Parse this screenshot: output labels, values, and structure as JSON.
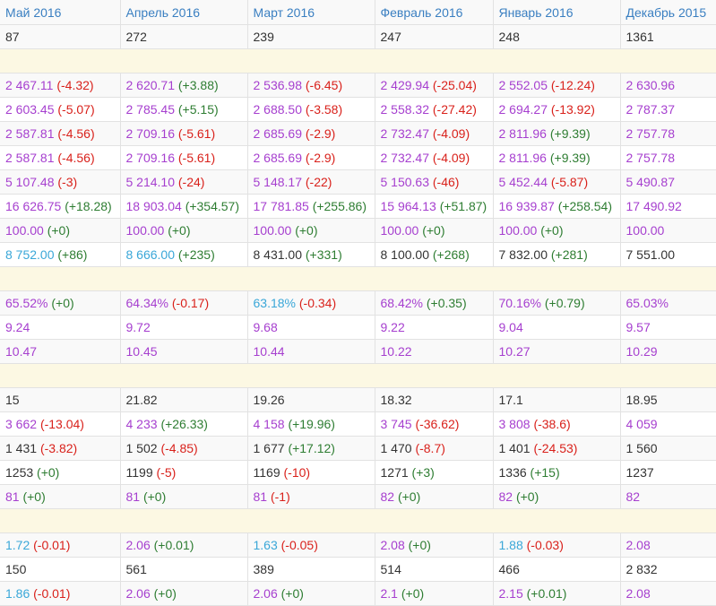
{
  "columns": [
    "Май 2016",
    "Апрель 2016",
    "Март 2016",
    "Февраль 2016",
    "Январь 2016",
    "Декабрь 2015"
  ],
  "colors": {
    "dark": "#333333",
    "violet": "#a63fcf",
    "blue": "#3aa7d8",
    "negative": "#d9211b",
    "positive": "#2e7d32",
    "header": "#3a7fc1",
    "spacer": "#fcf8e3"
  },
  "rows": [
    {
      "type": "data",
      "cells": [
        {
          "v": "87",
          "c": "dark"
        },
        {
          "v": "272",
          "c": "dark"
        },
        {
          "v": "239",
          "c": "dark"
        },
        {
          "v": "247",
          "c": "dark"
        },
        {
          "v": "248",
          "c": "dark"
        },
        {
          "v": "1361",
          "c": "dark"
        }
      ]
    },
    {
      "type": "spacer"
    },
    {
      "type": "data",
      "cells": [
        {
          "v": "2 467.11",
          "c": "violet",
          "d": "(-4.32)"
        },
        {
          "v": "2 620.71",
          "c": "violet",
          "d": "(+3.88)"
        },
        {
          "v": "2 536.98",
          "c": "violet",
          "d": "(-6.45)"
        },
        {
          "v": "2 429.94",
          "c": "violet",
          "d": "(-25.04)"
        },
        {
          "v": "2 552.05",
          "c": "violet",
          "d": "(-12.24)"
        },
        {
          "v": "2 630.96",
          "c": "violet"
        }
      ]
    },
    {
      "type": "data",
      "cells": [
        {
          "v": "2 603.45",
          "c": "violet",
          "d": "(-5.07)"
        },
        {
          "v": "2 785.45",
          "c": "violet",
          "d": "(+5.15)"
        },
        {
          "v": "2 688.50",
          "c": "violet",
          "d": "(-3.58)"
        },
        {
          "v": "2 558.32",
          "c": "violet",
          "d": "(-27.42)"
        },
        {
          "v": "2 694.27",
          "c": "violet",
          "d": "(-13.92)"
        },
        {
          "v": "2 787.37",
          "c": "violet"
        }
      ]
    },
    {
      "type": "data",
      "cells": [
        {
          "v": "2 587.81",
          "c": "violet",
          "d": "(-4.56)"
        },
        {
          "v": "2 709.16",
          "c": "violet",
          "d": "(-5.61)"
        },
        {
          "v": "2 685.69",
          "c": "violet",
          "d": "(-2.9)"
        },
        {
          "v": "2 732.47",
          "c": "violet",
          "d": "(-4.09)"
        },
        {
          "v": "2 811.96",
          "c": "violet",
          "d": "(+9.39)"
        },
        {
          "v": "2 757.78",
          "c": "violet"
        }
      ]
    },
    {
      "type": "data",
      "cells": [
        {
          "v": "2 587.81",
          "c": "violet",
          "d": "(-4.56)"
        },
        {
          "v": "2 709.16",
          "c": "violet",
          "d": "(-5.61)"
        },
        {
          "v": "2 685.69",
          "c": "violet",
          "d": "(-2.9)"
        },
        {
          "v": "2 732.47",
          "c": "violet",
          "d": "(-4.09)"
        },
        {
          "v": "2 811.96",
          "c": "violet",
          "d": "(+9.39)"
        },
        {
          "v": "2 757.78",
          "c": "violet"
        }
      ]
    },
    {
      "type": "data",
      "cells": [
        {
          "v": "5 107.48",
          "c": "violet",
          "d": "(-3)"
        },
        {
          "v": "5 214.10",
          "c": "violet",
          "d": "(-24)"
        },
        {
          "v": "5 148.17",
          "c": "violet",
          "d": "(-22)"
        },
        {
          "v": "5 150.63",
          "c": "violet",
          "d": "(-46)"
        },
        {
          "v": "5 452.44",
          "c": "violet",
          "d": "(-5.87)"
        },
        {
          "v": "5 490.87",
          "c": "violet"
        }
      ]
    },
    {
      "type": "data",
      "cells": [
        {
          "v": "16 626.75",
          "c": "violet",
          "d": "(+18.28)"
        },
        {
          "v": "18 903.04",
          "c": "violet",
          "d": "(+354.57)"
        },
        {
          "v": "17 781.85",
          "c": "violet",
          "d": "(+255.86)"
        },
        {
          "v": "15 964.13",
          "c": "violet",
          "d": "(+51.87)"
        },
        {
          "v": "16 939.87",
          "c": "violet",
          "d": "(+258.54)"
        },
        {
          "v": "17 490.92",
          "c": "violet"
        }
      ]
    },
    {
      "type": "data",
      "cells": [
        {
          "v": "100.00",
          "c": "violet",
          "d": "(+0)"
        },
        {
          "v": "100.00",
          "c": "violet",
          "d": "(+0)"
        },
        {
          "v": "100.00",
          "c": "violet",
          "d": "(+0)"
        },
        {
          "v": "100.00",
          "c": "violet",
          "d": "(+0)"
        },
        {
          "v": "100.00",
          "c": "violet",
          "d": "(+0)"
        },
        {
          "v": "100.00",
          "c": "violet"
        }
      ]
    },
    {
      "type": "data",
      "cells": [
        {
          "v": "8 752.00",
          "c": "blue",
          "d": "(+86)"
        },
        {
          "v": "8 666.00",
          "c": "blue",
          "d": "(+235)"
        },
        {
          "v": "8 431.00",
          "c": "positive",
          "d": "(+331)"
        },
        {
          "v": "8 100.00",
          "c": "positive",
          "d": "(+268)"
        },
        {
          "v": "7 832.00",
          "c": "positive",
          "d": "(+281)"
        },
        {
          "v": "7 551.00",
          "c": "positive"
        }
      ]
    },
    {
      "type": "spacer"
    },
    {
      "type": "data",
      "cells": [
        {
          "v": "65.52%",
          "c": "violet",
          "d": "(+0)"
        },
        {
          "v": "64.34%",
          "c": "violet",
          "d": "(-0.17)"
        },
        {
          "v": "63.18%",
          "c": "blue",
          "d": "(-0.34)"
        },
        {
          "v": "68.42%",
          "c": "violet",
          "d": "(+0.35)"
        },
        {
          "v": "70.16%",
          "c": "violet",
          "d": "(+0.79)"
        },
        {
          "v": "65.03%",
          "c": "violet"
        }
      ]
    },
    {
      "type": "data",
      "cells": [
        {
          "v": "9.24",
          "c": "violet"
        },
        {
          "v": "9.72",
          "c": "violet"
        },
        {
          "v": "9.68",
          "c": "violet"
        },
        {
          "v": "9.22",
          "c": "violet"
        },
        {
          "v": "9.04",
          "c": "violet"
        },
        {
          "v": "9.57",
          "c": "violet"
        }
      ]
    },
    {
      "type": "data",
      "cells": [
        {
          "v": "10.47",
          "c": "violet"
        },
        {
          "v": "10.45",
          "c": "violet"
        },
        {
          "v": "10.44",
          "c": "violet"
        },
        {
          "v": "10.22",
          "c": "violet"
        },
        {
          "v": "10.27",
          "c": "violet"
        },
        {
          "v": "10.29",
          "c": "violet"
        }
      ]
    },
    {
      "type": "spacer"
    },
    {
      "type": "data",
      "cells": [
        {
          "v": "15",
          "c": "dark"
        },
        {
          "v": "21.82",
          "c": "dark"
        },
        {
          "v": "19.26",
          "c": "dark"
        },
        {
          "v": "18.32",
          "c": "dark"
        },
        {
          "v": "17.1",
          "c": "dark"
        },
        {
          "v": "18.95",
          "c": "dark"
        }
      ]
    },
    {
      "type": "data",
      "cells": [
        {
          "v": "3 662",
          "c": "violet",
          "d": "(-13.04)"
        },
        {
          "v": "4 233",
          "c": "violet",
          "d": "(+26.33)"
        },
        {
          "v": "4 158",
          "c": "violet",
          "d": "(+19.96)"
        },
        {
          "v": "3 745",
          "c": "violet",
          "d": "(-36.62)"
        },
        {
          "v": "3 808",
          "c": "violet",
          "d": "(-38.6)"
        },
        {
          "v": "4 059",
          "c": "violet"
        }
      ]
    },
    {
      "type": "data",
      "cells": [
        {
          "v": "1 431",
          "c": "dark",
          "d": "(-3.82)"
        },
        {
          "v": "1 502",
          "c": "dark",
          "d": "(-4.85)"
        },
        {
          "v": "1 677",
          "c": "dark",
          "d": "(+17.12)"
        },
        {
          "v": "1 470",
          "c": "dark",
          "d": "(-8.7)"
        },
        {
          "v": "1 401",
          "c": "dark",
          "d": "(-24.53)"
        },
        {
          "v": "1 560",
          "c": "dark"
        }
      ]
    },
    {
      "type": "data",
      "cells": [
        {
          "v": "1253",
          "c": "dark",
          "d": "(+0)"
        },
        {
          "v": "1199",
          "c": "dark",
          "d": "(-5)"
        },
        {
          "v": "1169",
          "c": "dark",
          "d": "(-10)"
        },
        {
          "v": "1271",
          "c": "dark",
          "d": "(+3)"
        },
        {
          "v": "1336",
          "c": "dark",
          "d": "(+15)"
        },
        {
          "v": "1237",
          "c": "dark"
        }
      ]
    },
    {
      "type": "data",
      "cells": [
        {
          "v": "81",
          "c": "violet",
          "d": "(+0)"
        },
        {
          "v": "81",
          "c": "violet",
          "d": "(+0)"
        },
        {
          "v": "81",
          "c": "violet",
          "d": "(-1)"
        },
        {
          "v": "82",
          "c": "violet",
          "d": "(+0)"
        },
        {
          "v": "82",
          "c": "violet",
          "d": "(+0)"
        },
        {
          "v": "82",
          "c": "violet"
        }
      ]
    },
    {
      "type": "spacer"
    },
    {
      "type": "data",
      "cells": [
        {
          "v": "1.72",
          "c": "blue",
          "d": "(-0.01)"
        },
        {
          "v": "2.06",
          "c": "violet",
          "d": "(+0.01)"
        },
        {
          "v": "1.63",
          "c": "blue",
          "d": "(-0.05)"
        },
        {
          "v": "2.08",
          "c": "violet",
          "d": "(+0)"
        },
        {
          "v": "1.88",
          "c": "blue",
          "d": "(-0.03)"
        },
        {
          "v": "2.08",
          "c": "violet"
        }
      ]
    },
    {
      "type": "data",
      "cells": [
        {
          "v": "150",
          "c": "dark"
        },
        {
          "v": "561",
          "c": "dark"
        },
        {
          "v": "389",
          "c": "dark"
        },
        {
          "v": "514",
          "c": "dark"
        },
        {
          "v": "466",
          "c": "dark"
        },
        {
          "v": "2 832",
          "c": "dark"
        }
      ]
    },
    {
      "type": "data",
      "cells": [
        {
          "v": "1.86",
          "c": "blue",
          "d": "(-0.01)"
        },
        {
          "v": "2.06",
          "c": "violet",
          "d": "(+0)"
        },
        {
          "v": "2.06",
          "c": "violet",
          "d": "(+0)"
        },
        {
          "v": "2.1",
          "c": "violet",
          "d": "(+0)"
        },
        {
          "v": "2.15",
          "c": "violet",
          "d": "(+0.01)"
        },
        {
          "v": "2.08",
          "c": "violet"
        }
      ]
    }
  ]
}
